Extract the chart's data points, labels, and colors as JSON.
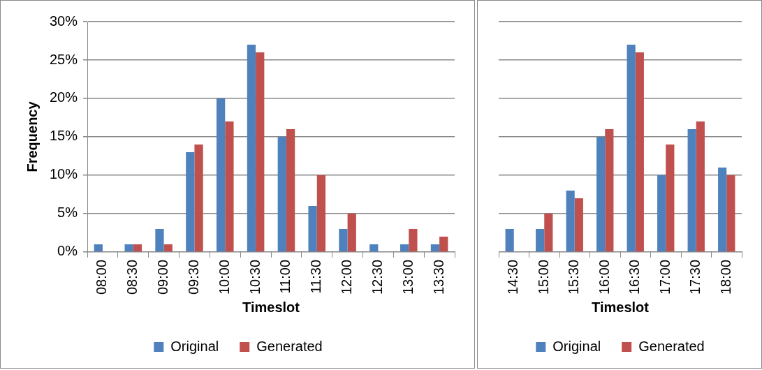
{
  "chart_data": [
    {
      "type": "bar",
      "categories": [
        "08:00",
        "08:30",
        "09:00",
        "09:30",
        "10:00",
        "10:30",
        "11:00",
        "11:30",
        "12:00",
        "12:30",
        "13:00",
        "13:30"
      ],
      "xlabel": "Timeslot",
      "ylabel": "Frequency",
      "ylim": [
        0,
        30
      ],
      "yticks": [
        {
          "value": 0,
          "label": "0%"
        },
        {
          "value": 5,
          "label": "5%"
        },
        {
          "value": 10,
          "label": "10%"
        },
        {
          "value": 15,
          "label": "15%"
        },
        {
          "value": 20,
          "label": "20%"
        },
        {
          "value": 25,
          "label": "25%"
        },
        {
          "value": 30,
          "label": "30%"
        }
      ],
      "grid": "y",
      "legend": "bottom",
      "series": [
        {
          "name": "Original",
          "color": "#4f81bd",
          "values": [
            1,
            1,
            3,
            13,
            20,
            27,
            15,
            6,
            3,
            1,
            1,
            1
          ]
        },
        {
          "name": "Generated",
          "color": "#c0504d",
          "values": [
            0,
            1,
            1,
            14,
            17,
            26,
            16,
            10,
            5,
            0,
            3,
            2
          ]
        }
      ]
    },
    {
      "type": "bar",
      "categories": [
        "14:30",
        "15:00",
        "15:30",
        "16:00",
        "16:30",
        "17:00",
        "17:30",
        "18:00"
      ],
      "xlabel": "Timeslot",
      "ylim": [
        0,
        30
      ],
      "yticks": [
        {
          "value": 0,
          "label": null
        },
        {
          "value": 5,
          "label": null
        },
        {
          "value": 10,
          "label": null
        },
        {
          "value": 15,
          "label": null
        },
        {
          "value": 20,
          "label": null
        },
        {
          "value": 25,
          "label": null
        },
        {
          "value": 30,
          "label": null
        }
      ],
      "tick_labels": "x",
      "grid": "y",
      "legend": "bottom",
      "series": [
        {
          "name": "Original",
          "color": "#4f81bd",
          "values": [
            3,
            3,
            8,
            15,
            27,
            10,
            16,
            11
          ]
        },
        {
          "name": "Generated",
          "color": "#c0504d",
          "values": [
            0,
            5,
            7,
            16,
            26,
            14,
            17,
            10
          ]
        }
      ]
    }
  ]
}
